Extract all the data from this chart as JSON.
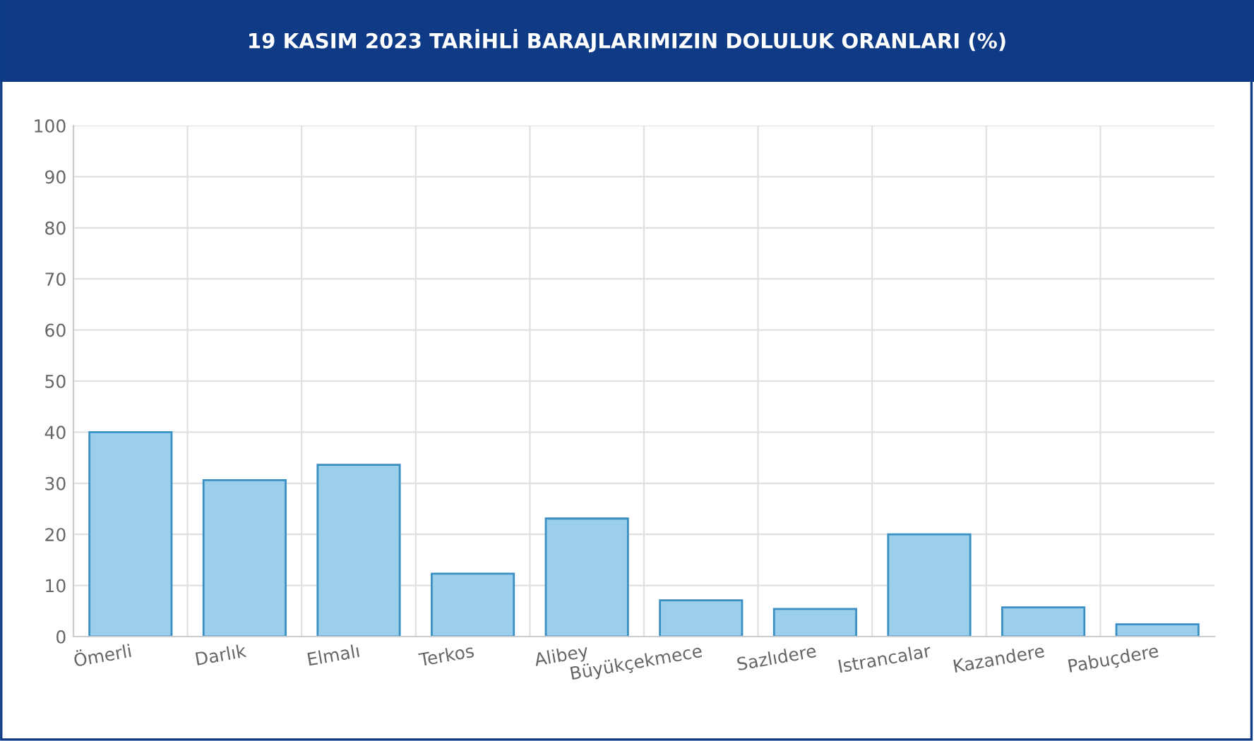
{
  "chart_data": {
    "type": "bar",
    "title": "19 KASIM 2023 TARİHLİ BARAJLARIMIZIN DOLULUK ORANLARI (%)",
    "categories": [
      "Ömerli",
      "Darlık",
      "Elmalı",
      "Terkos",
      "Alibey",
      "Büyükçekmece",
      "Sazlıdere",
      "Istrancalar",
      "Kazandere",
      "Pabuçdere"
    ],
    "values": [
      40,
      30.6,
      33.6,
      12.3,
      23.1,
      7.1,
      5.4,
      20,
      5.7,
      2.4
    ],
    "color": "#9ccfeb",
    "ylim": [
      0,
      100
    ],
    "yticks": [
      0,
      10,
      20,
      30,
      40,
      50,
      60,
      70,
      80,
      90,
      100
    ],
    "grid": true
  }
}
